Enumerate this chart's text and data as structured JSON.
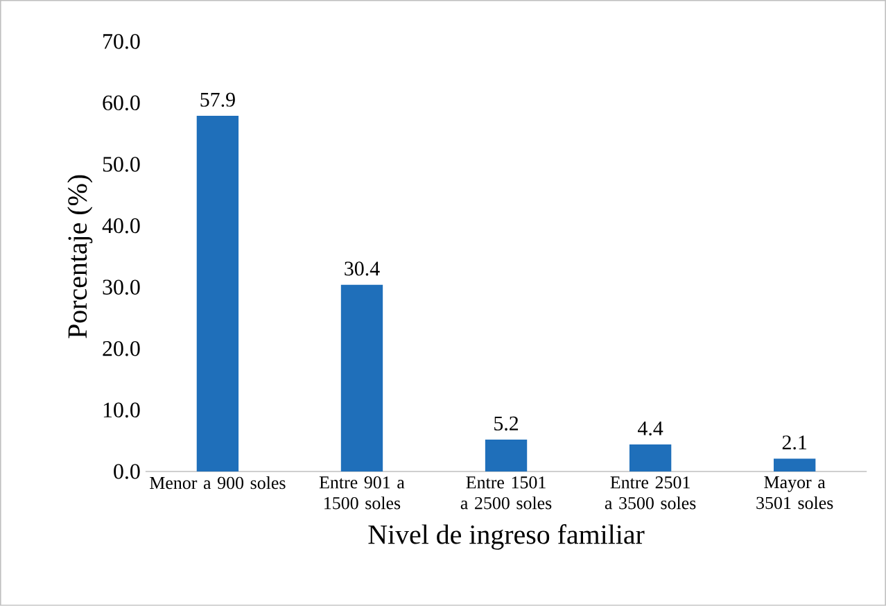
{
  "chart_data": {
    "type": "bar",
    "xlabel": "Nivel de ingreso familiar",
    "ylabel": "Porcentaje (%)",
    "categories": [
      "Menor a 900 soles",
      "Entre 901 a 1500 soles",
      "Entre 1501 a 2500 soles",
      "Entre 2501 a 3500 soles",
      "Mayor a 3501 soles"
    ],
    "values": [
      57.9,
      30.4,
      5.2,
      4.4,
      2.1
    ],
    "color": "#1f6fba",
    "ylim": [
      0,
      70
    ],
    "yticks": [
      {
        "value": 0,
        "label": "0.0"
      },
      {
        "value": 10,
        "label": "10.0"
      },
      {
        "value": 20,
        "label": "20.0"
      },
      {
        "value": 30,
        "label": "30.0"
      },
      {
        "value": 40,
        "label": "40.0"
      },
      {
        "value": 50,
        "label": "50.0"
      },
      {
        "value": 60,
        "label": "60.0"
      },
      {
        "value": 70,
        "label": "70.0"
      }
    ],
    "data_labels": true
  }
}
